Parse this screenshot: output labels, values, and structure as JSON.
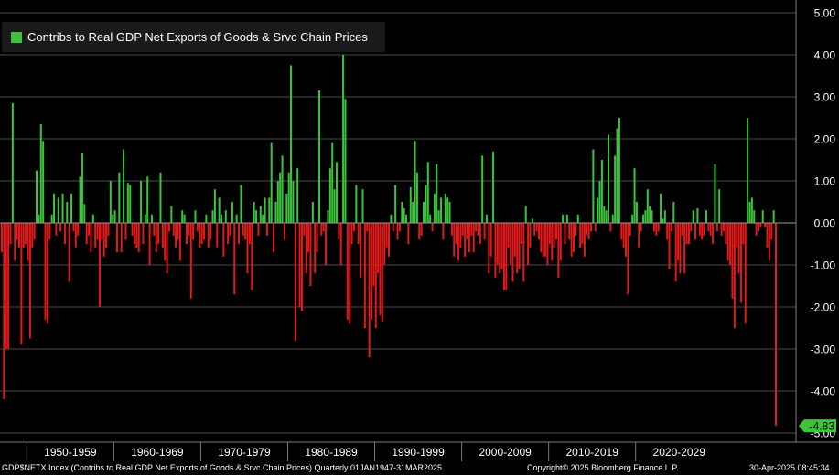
{
  "colors": {
    "positive": "#3cc43c",
    "negative": "#e01b1b",
    "grid": "#4a4a4a",
    "axis_text": "#ffffff",
    "background": "#000000",
    "last_value_badge": "#3cc43c"
  },
  "legend": {
    "label": "Contribs to Real GDP Net Exports of Goods & Srvc Chain Prices"
  },
  "footer": {
    "left": "GDP$NETX Index (Contribs to Real GDP Net Exports of Goods & Srvc Chain Prices)  Quarterly 01JAN1947-31MAR2025",
    "center": "Copyright© 2025 Bloomberg Finance L.P.",
    "right": "30-Apr-2025 08:45:34"
  },
  "chart_data": {
    "type": "bar",
    "title": "",
    "xlabel": "",
    "ylabel": "",
    "ylim": [
      -5.0,
      5.0
    ],
    "y_ticks": [
      "5.00",
      "4.00",
      "3.00",
      "2.00",
      "1.00",
      "0.00",
      "-1.00",
      "-2.00",
      "-3.00",
      "-4.00",
      "-5.00"
    ],
    "x_ticks": [
      "1950-1959",
      "1960-1969",
      "1970-1979",
      "1980-1989",
      "1990-1999",
      "2000-2009",
      "2010-2019",
      "2020-2029"
    ],
    "grid": true,
    "legend_position": "top-left",
    "last_value_label": "-4.83",
    "series": [
      {
        "name": "Contribs to Real GDP Net Exports of Goods & Srvc Chain Prices",
        "start": "1947Q1",
        "frequency": "quarterly",
        "values": [
          -0.7,
          -4.2,
          -3.0,
          -3.0,
          -0.5,
          2.85,
          -0.9,
          -0.4,
          -0.6,
          -2.9,
          -0.6,
          -0.5,
          -0.9,
          -2.75,
          -0.6,
          -0.4,
          1.25,
          0.2,
          2.35,
          1.95,
          -2.3,
          -2.4,
          -0.4,
          0.2,
          0.7,
          -0.3,
          0.6,
          -0.2,
          0.7,
          -0.5,
          0.5,
          -1.4,
          0.7,
          -0.2,
          -0.6,
          -0.3,
          1.1,
          1.65,
          0.45,
          -0.5,
          -0.3,
          -0.7,
          0.2,
          -0.6,
          -0.4,
          -2.0,
          -0.4,
          -0.8,
          -0.6,
          -0.3,
          1.0,
          0.2,
          0.3,
          -0.7,
          1.2,
          -0.7,
          1.75,
          -0.4,
          0.95,
          0.9,
          -0.3,
          -0.5,
          -0.6,
          -0.7,
          1.0,
          -0.5,
          0.2,
          1.1,
          -1.0,
          0.2,
          -0.3,
          -0.7,
          -0.5,
          1.2,
          -0.6,
          -0.9,
          -1.2,
          -0.2,
          0.4,
          -0.3,
          -0.6,
          -0.4,
          -0.9,
          0.3,
          0.2,
          -0.5,
          -0.3,
          -1.8,
          -0.4,
          0.3,
          -0.2,
          -0.6,
          -0.5,
          -0.4,
          0.2,
          -0.6,
          -0.4,
          0.3,
          0.8,
          -0.6,
          0.6,
          0.2,
          -0.8,
          0.3,
          -0.5,
          -0.3,
          0.5,
          -1.7,
          0.2,
          -0.5,
          0.9,
          -0.3,
          -0.4,
          -1.2,
          -0.5,
          -1.6,
          0.5,
          0.3,
          -0.3,
          0.4,
          0.2,
          0.6,
          -0.3,
          0.6,
          1.9,
          -0.7,
          0.5,
          1.0,
          1.2,
          1.6,
          -0.4,
          0.7,
          1.2,
          3.75,
          1.0,
          -2.8,
          1.3,
          -2.0,
          -2.1,
          -0.3,
          -1.2,
          -0.7,
          -1.5,
          0.5,
          -1.2,
          -0.7,
          3.15,
          -0.3,
          -0.2,
          -1.0,
          0.3,
          1.3,
          1.9,
          0.8,
          1.45,
          -0.4,
          -1.0,
          4.0,
          2.95,
          -2.3,
          -2.4,
          -0.5,
          -0.2,
          0.9,
          -0.5,
          -1.3,
          0.8,
          -2.5,
          -0.2,
          -3.2,
          -2.3,
          -1.5,
          -2.5,
          -1.2,
          -2.2,
          -2.35,
          -1.0,
          -0.6,
          -0.8,
          0.2,
          -0.2,
          0.9,
          -0.4,
          -0.2,
          0.5,
          0.35,
          0.2,
          -0.5,
          0.85,
          0.5,
          1.95,
          1.2,
          -0.4,
          -0.3,
          0.5,
          0.9,
          1.45,
          0.2,
          -0.2,
          0.7,
          1.4,
          0.3,
          0.6,
          -0.4,
          0.7,
          0.6,
          0.5,
          -0.3,
          -0.8,
          -0.5,
          -0.9,
          -0.6,
          -0.3,
          -0.8,
          -0.4,
          -0.7,
          -0.3,
          -0.7,
          -0.2,
          -0.3,
          -0.5,
          1.6,
          -0.4,
          0.2,
          -1.2,
          -0.8,
          1.7,
          -1.3,
          -1.0,
          -1.2,
          -1.1,
          -1.6,
          -1.6,
          -0.6,
          -1.0,
          -1.4,
          -0.8,
          -1.2,
          -1.1,
          -0.5,
          -1.4,
          0.4,
          -1.0,
          -0.6,
          0.1,
          -0.3,
          -0.2,
          -0.4,
          -0.7,
          -0.8,
          -0.8,
          -1.0,
          -0.5,
          -0.9,
          -0.6,
          -0.4,
          -1.3,
          -0.9,
          0.2,
          -0.5,
          0.2,
          -0.4,
          -0.8,
          -0.7,
          -0.3,
          0.2,
          -0.6,
          -0.5,
          -0.8,
          -0.3,
          -0.4,
          -0.2,
          1.75,
          -0.2,
          0.6,
          1.0,
          1.5,
          0.4,
          0.3,
          2.1,
          -0.2,
          0.2,
          1.6,
          2.25,
          2.5,
          -0.4,
          -0.6,
          -0.8,
          -1.7,
          -0.3,
          0.2,
          1.3,
          0.5,
          -0.6,
          -0.2,
          0.2,
          0.3,
          0.8,
          0.4,
          0.3,
          -0.2,
          -0.3,
          -0.2,
          0.7,
          0.1,
          0.3,
          -0.4,
          -1.1,
          -0.2,
          0.5,
          -1.4,
          -0.9,
          -1.2,
          -0.3,
          -1.2,
          -0.5,
          -0.5,
          -0.2,
          0.3,
          -0.4,
          0.35,
          -0.3,
          -0.4,
          -0.3,
          0.3,
          -0.2,
          -0.3,
          -0.5,
          1.4,
          -0.2,
          0.8,
          -0.3,
          -0.2,
          -0.5,
          -0.9,
          -1.0,
          -1.8,
          -2.5,
          -0.6,
          -1.2,
          -1.9,
          -0.5,
          -2.4,
          2.5,
          0.5,
          0.6,
          0.3,
          -0.3,
          -0.2,
          -0.1,
          0.3,
          -0.1,
          -0.6,
          -0.9,
          -0.4,
          0.3,
          -4.83
        ]
      }
    ]
  }
}
